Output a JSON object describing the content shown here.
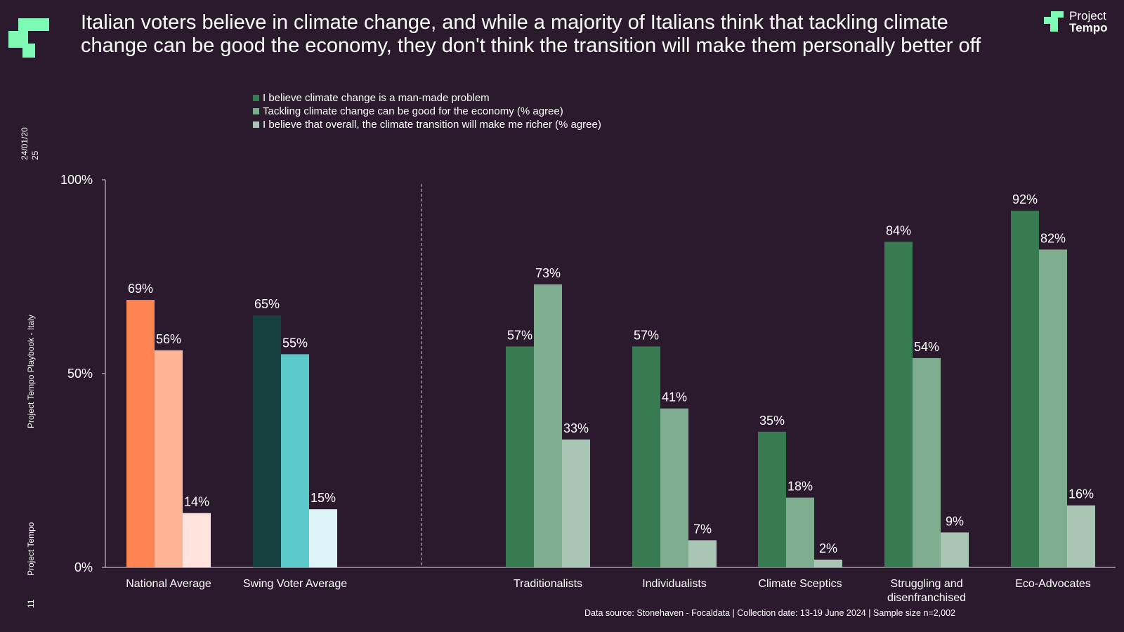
{
  "header": {
    "title": "Italian voters believe in climate change, and while a majority of Italians think that tackling climate change can be good the economy, they don't think the transition will make them personally better off",
    "brand_line1": "Project",
    "brand_line2": "Tempo"
  },
  "sidebar": {
    "date": "24/01/20",
    "date_suffix": "25",
    "playbook": "Project Tempo Playbook - Italy",
    "org": "Project Tempo",
    "page_number": "11"
  },
  "footer": {
    "source": "Data source: Stonehaven - Focaldata |  Collection date: 13-19 June 2024 | Sample size n=2,002"
  },
  "colors": {
    "background": "#2b1a2e",
    "brand_green": "#7dfbb5",
    "national": [
      "#ff8451",
      "#ffb495",
      "#ffe3dc"
    ],
    "swing": [
      "#164040",
      "#5cc9ca",
      "#dcf4f6"
    ],
    "segments": [
      "#387a52",
      "#7dac8f",
      "#a9c5b4"
    ],
    "divider": "#cccccc"
  },
  "chart_data": {
    "type": "bar",
    "categories": [
      "National Average",
      "Swing Voter Average",
      "Traditionalists",
      "Individualists",
      "Climate Sceptics",
      "Struggling and disenfranchised",
      "Eco-Advocates"
    ],
    "category_label_lines": [
      [
        "National Average"
      ],
      [
        "Swing Voter Average"
      ],
      [
        "Traditionalists"
      ],
      [
        "Individualists"
      ],
      [
        "Climate Sceptics"
      ],
      [
        "Struggling and",
        "disenfranchised"
      ],
      [
        "Eco-Advocates"
      ]
    ],
    "series": [
      {
        "name": "I believe climate change is a man-made problem",
        "values": [
          69,
          65,
          57,
          57,
          35,
          84,
          92
        ]
      },
      {
        "name": "Tackling climate change can be good for the economy (% agree)",
        "values": [
          56,
          55,
          73,
          41,
          18,
          54,
          82
        ]
      },
      {
        "name": "I believe that overall, the climate transition will make me richer (% agree)",
        "values": [
          14,
          15,
          33,
          7,
          2,
          9,
          16
        ]
      }
    ],
    "data_labels": [
      [
        "69%",
        "56%",
        "14%"
      ],
      [
        "65%",
        "55%",
        "15%"
      ],
      [
        "57%",
        "73%",
        "33%"
      ],
      [
        "57%",
        "41%",
        "7%"
      ],
      [
        "35%",
        "18%",
        "2%"
      ],
      [
        "84%",
        "54%",
        "9%"
      ],
      [
        "92%",
        "82%",
        "16%"
      ]
    ],
    "y_ticks": [
      "0%",
      "50%",
      "100%"
    ],
    "y_tick_values": [
      0,
      50,
      100
    ],
    "ylim": [
      0,
      100
    ],
    "grid": false,
    "legend_position": "top",
    "divider_after_category": "Swing Voter Average"
  }
}
